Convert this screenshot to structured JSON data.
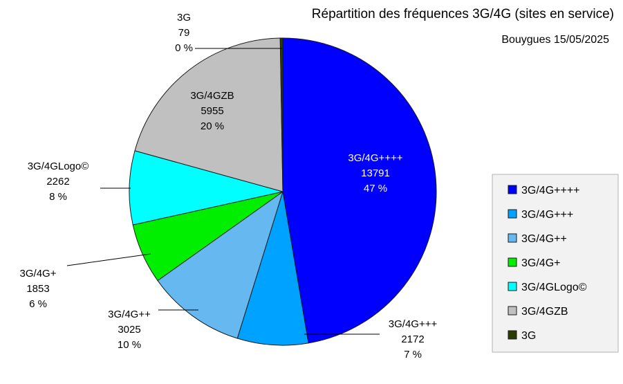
{
  "chart_data": {
    "type": "pie",
    "title": "Répartition des fréquences 3G/4G (sites en service)",
    "subtitle": "Bouygues 15/05/2025",
    "legend_position": "right",
    "slices": [
      {
        "name": "3G/4G++++",
        "value": 13791,
        "percent_label": "47 %",
        "color": "#0000ff"
      },
      {
        "name": "3G/4G+++",
        "value": 2172,
        "percent_label": "7 %",
        "color": "#00a2ff"
      },
      {
        "name": "3G/4G++",
        "value": 3025,
        "percent_label": "10 %",
        "color": "#66b9f0"
      },
      {
        "name": "3G/4G+",
        "value": 1853,
        "percent_label": "6 %",
        "color": "#00ee00"
      },
      {
        "name": "3G/4GLogo©",
        "value": 2262,
        "percent_label": "8 %",
        "color": "#00ffff"
      },
      {
        "name": "3G/4GZB",
        "value": 5955,
        "percent_label": "20 %",
        "color": "#c0c0c0"
      },
      {
        "name": "3G",
        "value": 79,
        "percent_label": "0 %",
        "color": "#2a3d00"
      }
    ]
  }
}
